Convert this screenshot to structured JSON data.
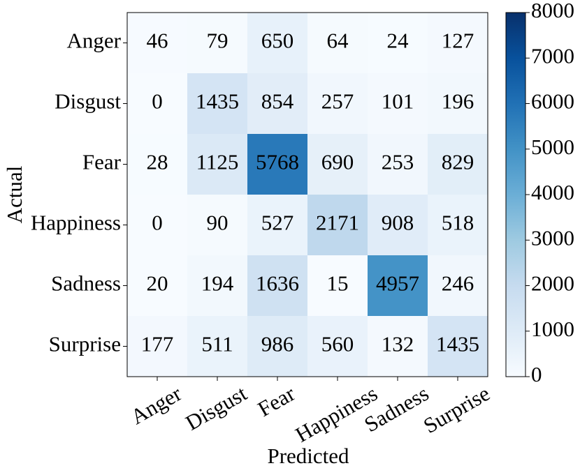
{
  "chart_data": {
    "type": "heatmap",
    "x_label": "Predicted",
    "y_label": "Actual",
    "x_categories": [
      "Anger",
      "Disgust",
      "Fear",
      "Happiness",
      "Sadness",
      "Surprise"
    ],
    "y_categories": [
      "Anger",
      "Disgust",
      "Fear",
      "Happiness",
      "Sadness",
      "Surprise"
    ],
    "values": [
      [
        46,
        79,
        650,
        64,
        24,
        127
      ],
      [
        0,
        1435,
        854,
        257,
        101,
        196
      ],
      [
        28,
        1125,
        5768,
        690,
        253,
        829
      ],
      [
        0,
        90,
        527,
        2171,
        908,
        518
      ],
      [
        20,
        194,
        1636,
        15,
        4957,
        246
      ],
      [
        177,
        511,
        986,
        560,
        132,
        1435
      ]
    ],
    "colormap": "Blues",
    "zlim": [
      0,
      8000
    ],
    "zticks": [
      0,
      1000,
      2000,
      3000,
      4000,
      5000,
      6000,
      7000,
      8000
    ]
  }
}
